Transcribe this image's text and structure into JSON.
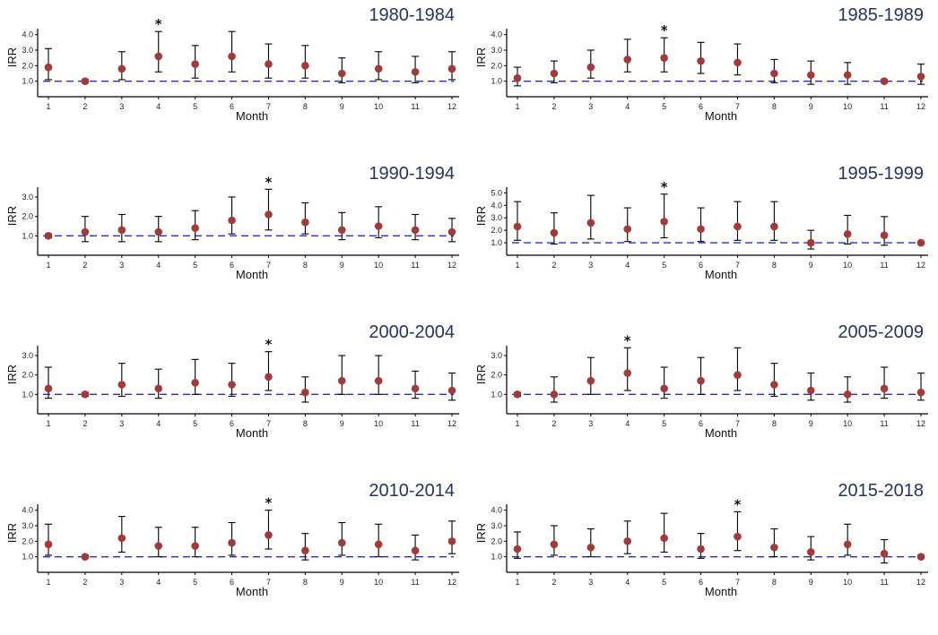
{
  "figure": {
    "colors": {
      "point": "#a33a3a",
      "ref_line": "#2b2bd6",
      "error_bar": "#000000",
      "title": "#23365f"
    }
  },
  "chart_data": [
    {
      "type": "scatter",
      "title": "1980-1984",
      "xlabel": "Month",
      "ylabel": "IRR",
      "x": [
        1,
        2,
        3,
        4,
        5,
        6,
        7,
        8,
        9,
        10,
        11,
        12
      ],
      "yticks": [
        "1.0",
        "2.0",
        "3.0",
        "4.0"
      ],
      "ylim": [
        0.0,
        4.5
      ],
      "reference_line": 1.0,
      "series": [
        {
          "values": [
            1.9,
            1.0,
            1.8,
            2.6,
            2.1,
            2.6,
            2.1,
            2.0,
            1.5,
            1.8,
            1.6,
            1.8
          ],
          "lower": [
            1.1,
            0.9,
            1.1,
            1.6,
            1.2,
            1.6,
            1.2,
            1.2,
            0.9,
            1.1,
            0.9,
            1.1
          ],
          "upper": [
            3.1,
            1.1,
            2.9,
            4.2,
            3.3,
            4.2,
            3.4,
            3.3,
            2.5,
            2.9,
            2.6,
            2.9
          ]
        }
      ],
      "significant_months": [
        4
      ],
      "significance_marker": "*"
    },
    {
      "type": "scatter",
      "title": "1985-1989",
      "xlabel": "Month",
      "ylabel": "IRR",
      "x": [
        1,
        2,
        3,
        4,
        5,
        6,
        7,
        8,
        9,
        10,
        11,
        12
      ],
      "yticks": [
        "1.0",
        "2.0",
        "3.0",
        "4.0"
      ],
      "ylim": [
        0.0,
        4.5
      ],
      "reference_line": 1.0,
      "series": [
        {
          "values": [
            1.2,
            1.5,
            1.9,
            2.4,
            2.5,
            2.3,
            2.2,
            1.5,
            1.4,
            1.4,
            1.0,
            1.3
          ],
          "lower": [
            0.7,
            0.9,
            1.2,
            1.6,
            1.6,
            1.5,
            1.4,
            0.9,
            0.8,
            0.8,
            0.9,
            0.8
          ],
          "upper": [
            1.9,
            2.3,
            3.0,
            3.7,
            3.8,
            3.5,
            3.4,
            2.4,
            2.3,
            2.2,
            1.1,
            2.1
          ]
        }
      ],
      "significant_months": [
        5
      ],
      "significance_marker": "*"
    },
    {
      "type": "scatter",
      "title": "1990-1994",
      "xlabel": "Month",
      "ylabel": "IRR",
      "x": [
        1,
        2,
        3,
        4,
        5,
        6,
        7,
        8,
        9,
        10,
        11,
        12
      ],
      "yticks": [
        "1.0",
        "2.0",
        "3.0"
      ],
      "ylim": [
        0.0,
        3.6
      ],
      "reference_line": 1.0,
      "series": [
        {
          "values": [
            1.0,
            1.2,
            1.3,
            1.2,
            1.4,
            1.8,
            2.1,
            1.7,
            1.3,
            1.5,
            1.3,
            1.2
          ],
          "lower": [
            0.9,
            0.7,
            0.7,
            0.7,
            0.8,
            1.1,
            1.3,
            1.1,
            0.8,
            0.9,
            0.8,
            0.7
          ],
          "upper": [
            1.1,
            2.0,
            2.1,
            2.0,
            2.3,
            3.0,
            3.4,
            2.7,
            2.2,
            2.5,
            2.1,
            1.9
          ]
        }
      ],
      "significant_months": [
        7
      ],
      "significance_marker": "*"
    },
    {
      "type": "scatter",
      "title": "1995-1999",
      "xlabel": "Month",
      "ylabel": "IRR",
      "x": [
        1,
        2,
        3,
        4,
        5,
        6,
        7,
        8,
        9,
        10,
        11,
        12
      ],
      "yticks": [
        "1.0",
        "2.0",
        "3.0",
        "4.0",
        "5.0"
      ],
      "ylim": [
        0.0,
        5.6
      ],
      "reference_line": 1.0,
      "series": [
        {
          "values": [
            2.3,
            1.8,
            2.6,
            2.1,
            2.7,
            2.1,
            2.3,
            2.3,
            1.0,
            1.7,
            1.6,
            1.0
          ],
          "lower": [
            1.2,
            0.9,
            1.3,
            1.1,
            1.4,
            1.1,
            1.2,
            1.2,
            0.5,
            0.9,
            0.8,
            0.9
          ],
          "upper": [
            4.3,
            3.4,
            4.8,
            3.8,
            4.9,
            3.8,
            4.3,
            4.3,
            2.0,
            3.2,
            3.1,
            1.1
          ]
        }
      ],
      "significant_months": [
        5
      ],
      "significance_marker": "*"
    },
    {
      "type": "scatter",
      "title": "2000-2004",
      "xlabel": "Month",
      "ylabel": "IRR",
      "x": [
        1,
        2,
        3,
        4,
        5,
        6,
        7,
        8,
        9,
        10,
        11,
        12
      ],
      "yticks": [
        "1.0",
        "2.0",
        "3.0"
      ],
      "ylim": [
        0.0,
        3.6
      ],
      "reference_line": 1.0,
      "series": [
        {
          "values": [
            1.3,
            1.0,
            1.5,
            1.3,
            1.6,
            1.5,
            1.9,
            1.1,
            1.7,
            1.7,
            1.3,
            1.2
          ],
          "lower": [
            0.8,
            0.9,
            0.9,
            0.8,
            1.0,
            0.9,
            1.2,
            0.6,
            1.0,
            1.0,
            0.8,
            0.7
          ],
          "upper": [
            2.4,
            1.1,
            2.6,
            2.3,
            2.8,
            2.6,
            3.2,
            1.9,
            3.0,
            3.0,
            2.2,
            2.1
          ]
        }
      ],
      "significant_months": [
        7
      ],
      "significance_marker": "*"
    },
    {
      "type": "scatter",
      "title": "2005-2009",
      "xlabel": "Month",
      "ylabel": "IRR",
      "x": [
        1,
        2,
        3,
        4,
        5,
        6,
        7,
        8,
        9,
        10,
        11,
        12
      ],
      "yticks": [
        "1.0",
        "2.0",
        "3.0"
      ],
      "ylim": [
        0.0,
        3.6
      ],
      "reference_line": 1.0,
      "series": [
        {
          "values": [
            1.0,
            1.0,
            1.7,
            2.1,
            1.3,
            1.7,
            2.0,
            1.5,
            1.2,
            1.0,
            1.3,
            1.1
          ],
          "lower": [
            0.9,
            0.6,
            1.0,
            1.2,
            0.8,
            1.0,
            1.2,
            0.9,
            0.7,
            0.6,
            0.8,
            0.7
          ],
          "upper": [
            1.1,
            1.9,
            2.9,
            3.4,
            2.4,
            2.9,
            3.4,
            2.6,
            2.1,
            1.9,
            2.4,
            2.1
          ]
        }
      ],
      "significant_months": [
        4
      ],
      "significance_marker": "*"
    },
    {
      "type": "scatter",
      "title": "2010-2014",
      "xlabel": "Month",
      "ylabel": "IRR",
      "x": [
        1,
        2,
        3,
        4,
        5,
        6,
        7,
        8,
        9,
        10,
        11,
        12
      ],
      "yticks": [
        "1.0",
        "2.0",
        "3.0",
        "4.0"
      ],
      "ylim": [
        0.0,
        4.5
      ],
      "reference_line": 1.0,
      "series": [
        {
          "values": [
            1.8,
            1.0,
            2.2,
            1.7,
            1.7,
            1.9,
            2.4,
            1.4,
            1.9,
            1.8,
            1.4,
            2.0
          ],
          "lower": [
            1.1,
            0.9,
            1.3,
            1.0,
            1.0,
            1.1,
            1.5,
            0.8,
            1.1,
            1.0,
            0.8,
            1.2
          ],
          "upper": [
            3.1,
            1.1,
            3.6,
            2.9,
            2.9,
            3.2,
            4.0,
            2.5,
            3.2,
            3.1,
            2.4,
            3.3
          ]
        }
      ],
      "significant_months": [
        7
      ],
      "significance_marker": "*"
    },
    {
      "type": "scatter",
      "title": "2015-2018",
      "xlabel": "Month",
      "ylabel": "IRR",
      "x": [
        1,
        2,
        3,
        4,
        5,
        6,
        7,
        8,
        9,
        10,
        11,
        12
      ],
      "yticks": [
        "1.0",
        "2.0",
        "3.0",
        "4.0"
      ],
      "ylim": [
        0.0,
        4.5
      ],
      "reference_line": 1.0,
      "series": [
        {
          "values": [
            1.5,
            1.8,
            1.6,
            2.0,
            2.2,
            1.5,
            2.3,
            1.6,
            1.3,
            1.8,
            1.2,
            1.0
          ],
          "lower": [
            0.9,
            1.1,
            1.0,
            1.2,
            1.3,
            0.9,
            1.4,
            1.0,
            0.8,
            1.1,
            0.6,
            0.9
          ],
          "upper": [
            2.6,
            3.0,
            2.8,
            3.3,
            3.8,
            2.5,
            3.9,
            2.8,
            2.3,
            3.1,
            2.1,
            1.1
          ]
        }
      ],
      "significant_months": [
        7
      ],
      "significance_marker": "*"
    }
  ]
}
